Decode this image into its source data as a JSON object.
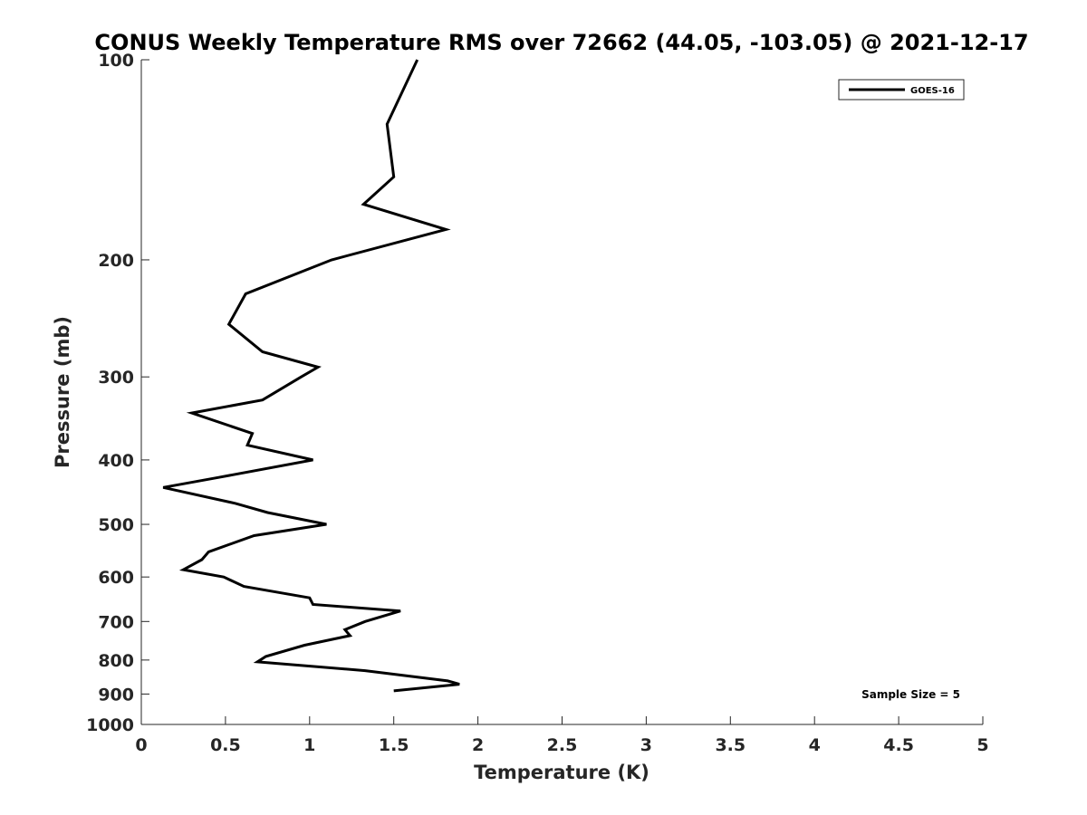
{
  "chart_data": {
    "type": "line",
    "title": "CONUS Weekly Temperature RMS over 72662 (44.05, -103.05) @ 2021-12-17",
    "xlabel": "Temperature (K)",
    "ylabel": "Pressure (mb)",
    "xlim": [
      0,
      5
    ],
    "ylim": [
      100,
      1000
    ],
    "y_scale": "log",
    "y_reversed": true,
    "grid": false,
    "legend_position": "top-right",
    "xticks": [
      0,
      0.5,
      1,
      1.5,
      2,
      2.5,
      3,
      3.5,
      4,
      4.5,
      5
    ],
    "xtick_labels": [
      "0",
      "0.5",
      "1",
      "1.5",
      "2",
      "2.5",
      "3",
      "3.5",
      "4",
      "4.5",
      "5"
    ],
    "yticks": [
      100,
      200,
      300,
      400,
      500,
      600,
      700,
      800,
      900,
      1000
    ],
    "ytick_labels": [
      "100",
      "200",
      "300",
      "400",
      "500",
      "600",
      "700",
      "800",
      "900",
      "1000"
    ],
    "series": [
      {
        "name": "GOES-16",
        "color": "#000000",
        "points": [
          {
            "x": 1.64,
            "y": 100
          },
          {
            "x": 1.46,
            "y": 125
          },
          {
            "x": 1.5,
            "y": 150
          },
          {
            "x": 1.32,
            "y": 165
          },
          {
            "x": 1.81,
            "y": 180
          },
          {
            "x": 1.13,
            "y": 200
          },
          {
            "x": 0.62,
            "y": 225
          },
          {
            "x": 0.52,
            "y": 250
          },
          {
            "x": 0.72,
            "y": 275
          },
          {
            "x": 1.05,
            "y": 290
          },
          {
            "x": 0.95,
            "y": 300
          },
          {
            "x": 0.72,
            "y": 325
          },
          {
            "x": 0.3,
            "y": 340
          },
          {
            "x": 0.66,
            "y": 365
          },
          {
            "x": 0.63,
            "y": 380
          },
          {
            "x": 1.02,
            "y": 400
          },
          {
            "x": 0.46,
            "y": 425
          },
          {
            "x": 0.13,
            "y": 440
          },
          {
            "x": 0.56,
            "y": 465
          },
          {
            "x": 0.75,
            "y": 480
          },
          {
            "x": 1.1,
            "y": 500
          },
          {
            "x": 0.67,
            "y": 520
          },
          {
            "x": 0.4,
            "y": 550
          },
          {
            "x": 0.36,
            "y": 565
          },
          {
            "x": 0.25,
            "y": 585
          },
          {
            "x": 0.49,
            "y": 600
          },
          {
            "x": 0.61,
            "y": 620
          },
          {
            "x": 1.0,
            "y": 645
          },
          {
            "x": 1.02,
            "y": 660
          },
          {
            "x": 1.54,
            "y": 675
          },
          {
            "x": 1.33,
            "y": 700
          },
          {
            "x": 1.21,
            "y": 720
          },
          {
            "x": 1.24,
            "y": 735
          },
          {
            "x": 0.97,
            "y": 760
          },
          {
            "x": 0.74,
            "y": 790
          },
          {
            "x": 0.69,
            "y": 805
          },
          {
            "x": 1.33,
            "y": 830
          },
          {
            "x": 1.82,
            "y": 860
          },
          {
            "x": 1.89,
            "y": 870
          },
          {
            "x": 1.5,
            "y": 890
          }
        ]
      }
    ],
    "annotation": "Sample Size = 5"
  }
}
